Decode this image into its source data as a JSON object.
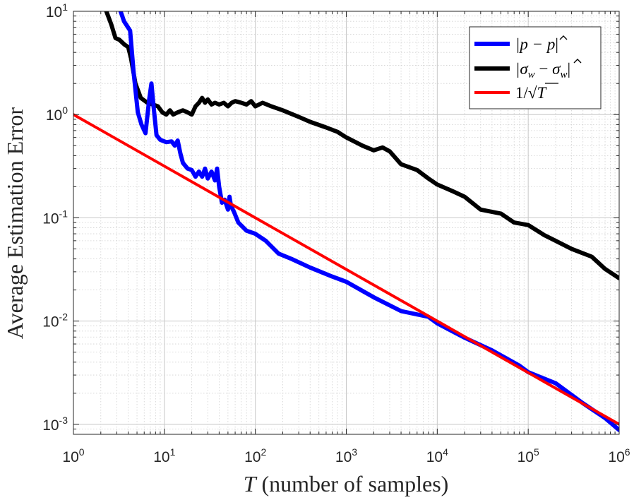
{
  "chart_data": {
    "type": "line",
    "title": "",
    "xlabel_var": "T",
    "xlabel_rest": " (number of samples)",
    "ylabel": "Average Estimation Error",
    "xscale": "log",
    "yscale": "log",
    "xlim": [
      1,
      1000000
    ],
    "ylim": [
      0.0008,
      10
    ],
    "grid": true,
    "legend_position": "top-right",
    "x_ticks": [
      {
        "value": 1,
        "base": "10",
        "exp": "0"
      },
      {
        "value": 10,
        "base": "10",
        "exp": "1"
      },
      {
        "value": 100,
        "base": "10",
        "exp": "2"
      },
      {
        "value": 1000,
        "base": "10",
        "exp": "3"
      },
      {
        "value": 10000,
        "base": "10",
        "exp": "4"
      },
      {
        "value": 100000,
        "base": "10",
        "exp": "5"
      },
      {
        "value": 1000000,
        "base": "10",
        "exp": "6"
      }
    ],
    "y_ticks": [
      {
        "value": 0.001,
        "base": "10",
        "exp": "-3"
      },
      {
        "value": 0.01,
        "base": "10",
        "exp": "-2"
      },
      {
        "value": 0.1,
        "base": "10",
        "exp": "-1"
      },
      {
        "value": 1,
        "base": "10",
        "exp": "0"
      },
      {
        "value": 10,
        "base": "10",
        "exp": "1"
      }
    ],
    "series": [
      {
        "name": "|p − p̂|",
        "legend_main": "|p − ",
        "legend_hat": "p",
        "legend_tail": "|",
        "color": "#0000ff",
        "x": [
          3.3,
          3.6,
          4.2,
          4.6,
          5.1,
          5.6,
          6.2,
          6.8,
          7.2,
          7.6,
          8.2,
          9.0,
          10.5,
          12,
          13,
          14,
          15,
          16,
          18,
          20,
          22,
          24,
          26,
          28,
          30,
          33,
          36,
          38,
          40,
          43,
          46,
          50,
          52,
          54,
          58,
          65,
          80,
          100,
          130,
          180,
          250,
          400,
          700,
          1000,
          2000,
          4000,
          8000,
          10000,
          20000,
          40000,
          80000,
          100000,
          200000,
          400000,
          700000,
          1000000
        ],
        "y": [
          10,
          8,
          6.5,
          2.5,
          1.05,
          0.8,
          0.66,
          1.4,
          2.0,
          1.2,
          0.63,
          0.57,
          0.54,
          0.55,
          0.5,
          0.56,
          0.42,
          0.34,
          0.3,
          0.29,
          0.25,
          0.28,
          0.25,
          0.3,
          0.24,
          0.28,
          0.23,
          0.3,
          0.2,
          0.14,
          0.15,
          0.12,
          0.16,
          0.13,
          0.115,
          0.09,
          0.075,
          0.07,
          0.06,
          0.045,
          0.04,
          0.033,
          0.027,
          0.024,
          0.017,
          0.0125,
          0.011,
          0.0095,
          0.0069,
          0.0052,
          0.0037,
          0.0032,
          0.0025,
          0.0016,
          0.00115,
          0.00088
        ]
      },
      {
        "name": "|σw − σ̂w|",
        "legend_sigma1": "|σ",
        "legend_sub1": "w",
        "legend_minus": " − ",
        "legend_hat": "σ",
        "legend_sub2": "w",
        "legend_tail": "|",
        "color": "#000000",
        "x": [
          2.3,
          2.6,
          2.9,
          3.2,
          3.6,
          4.0,
          4.3,
          4.8,
          5.5,
          6.5,
          7.5,
          8.5,
          9.5,
          10.5,
          11.5,
          12.5,
          14,
          16,
          18,
          20,
          22,
          24,
          26,
          28,
          30,
          33,
          36,
          40,
          45,
          50,
          55,
          60,
          70,
          80,
          90,
          100,
          120,
          150,
          200,
          300,
          400,
          600,
          800,
          1000,
          1500,
          2000,
          2500,
          3000,
          4000,
          6000,
          8000,
          10000,
          15000,
          20000,
          30000,
          50000,
          70000,
          100000,
          150000,
          200000,
          300000,
          500000,
          700000,
          1000000
        ],
        "y": [
          10,
          7.5,
          5.5,
          5.3,
          4.8,
          4.5,
          3.5,
          2.0,
          1.45,
          1.3,
          1.25,
          1.2,
          1.05,
          1.0,
          1.1,
          1.0,
          1.05,
          1.1,
          1.05,
          1.0,
          1.2,
          1.3,
          1.45,
          1.3,
          1.4,
          1.25,
          1.3,
          1.25,
          1.3,
          1.2,
          1.3,
          1.35,
          1.3,
          1.25,
          1.35,
          1.2,
          1.3,
          1.2,
          1.1,
          0.95,
          0.85,
          0.75,
          0.68,
          0.6,
          0.5,
          0.45,
          0.48,
          0.44,
          0.33,
          0.29,
          0.24,
          0.21,
          0.18,
          0.16,
          0.12,
          0.11,
          0.09,
          0.085,
          0.068,
          0.06,
          0.05,
          0.042,
          0.032,
          0.026
        ]
      },
      {
        "name": "1/√T",
        "legend_main": "1/√",
        "legend_var": "T",
        "color": "#ff0000",
        "x": [
          1,
          1000000
        ],
        "y": [
          1,
          0.001
        ]
      }
    ]
  }
}
